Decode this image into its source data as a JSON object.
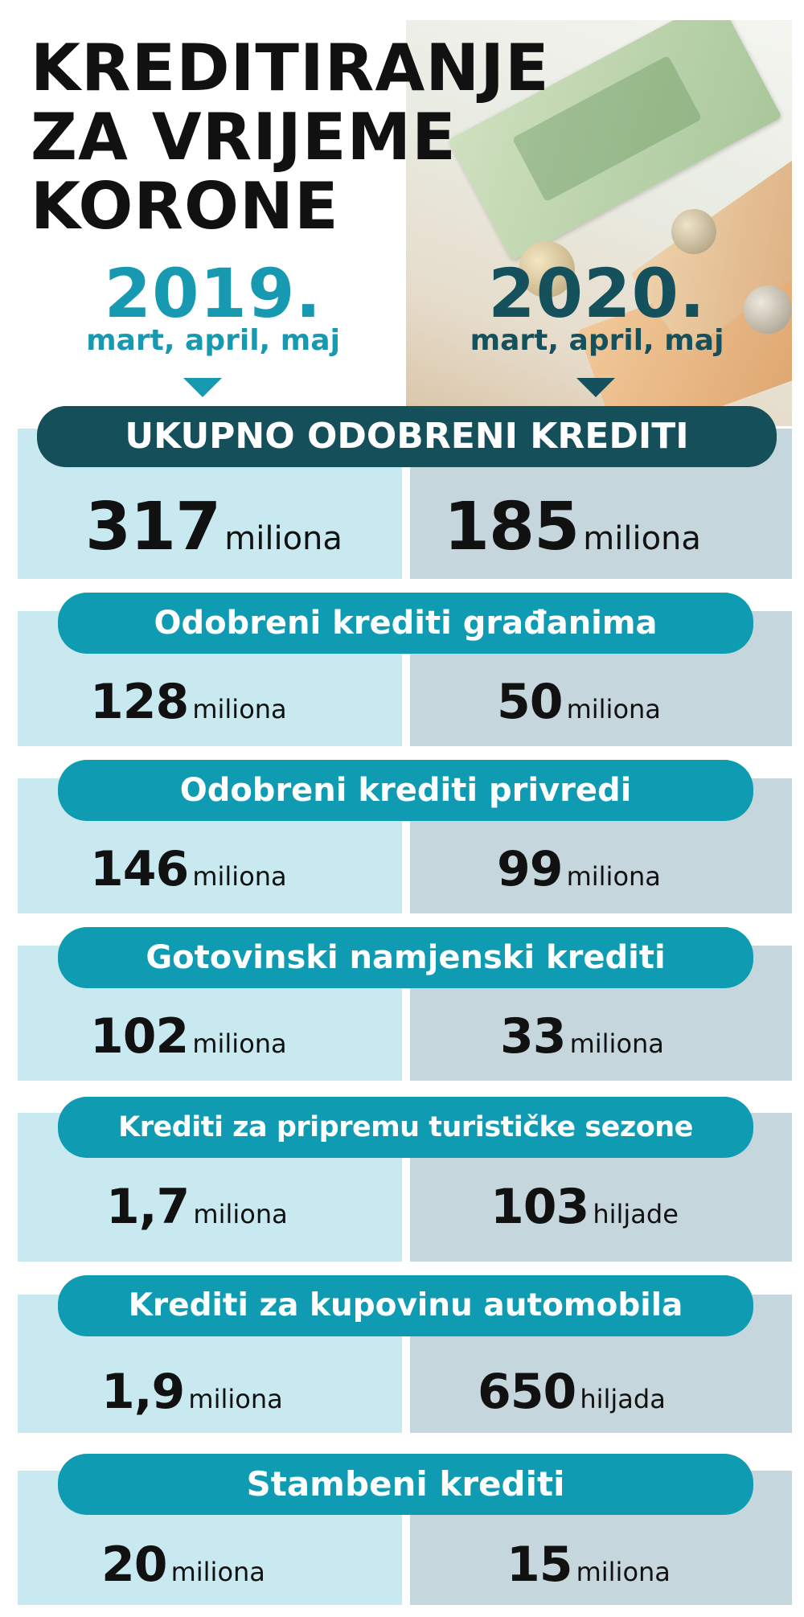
{
  "title": [
    "KREDITIRANJE",
    "ZA VRIJEME",
    "KORONE"
  ],
  "colors": {
    "year_2019": "#1699b1",
    "year_2020": "#15515c",
    "main_bar": "#144f5a",
    "sub_bar": "#0f9cb3",
    "cell_2019": "#c9e9f0",
    "cell_2020": "#c5d6dc"
  },
  "columns": [
    {
      "year": "2019.",
      "period": "mart, april, maj"
    },
    {
      "year": "2020.",
      "period": "mart, april, maj"
    }
  ],
  "main": {
    "label": "UKUPNO ODOBRENI KREDITI",
    "v2019": {
      "num": "317",
      "unit": "miliona"
    },
    "v2020": {
      "num": "185",
      "unit": "miliona"
    }
  },
  "rows": [
    {
      "label": "Odobreni krediti građanima",
      "v2019": {
        "num": "128",
        "unit": "miliona"
      },
      "v2020": {
        "num": "50",
        "unit": "miliona"
      }
    },
    {
      "label": "Odobreni krediti  privredi",
      "v2019": {
        "num": "146",
        "unit": "miliona"
      },
      "v2020": {
        "num": "99",
        "unit": "miliona"
      }
    },
    {
      "label": "Gotovinski namjenski krediti",
      "v2019": {
        "num": "102",
        "unit": "miliona"
      },
      "v2020": {
        "num": "33",
        "unit": "miliona"
      }
    },
    {
      "label": "Krediti za pripremu turističke sezone",
      "v2019": {
        "num": "1,7",
        "unit": "miliona"
      },
      "v2020": {
        "num": "103",
        "unit": "hiljade"
      }
    },
    {
      "label": "Krediti za kupovinu automobila",
      "v2019": {
        "num": "1,9",
        "unit": "miliona"
      },
      "v2020": {
        "num": "650",
        "unit": "hiljada"
      }
    },
    {
      "label": "Stambeni krediti",
      "v2019": {
        "num": "20",
        "unit": "miliona"
      },
      "v2020": {
        "num": "15",
        "unit": "miliona"
      }
    }
  ]
}
